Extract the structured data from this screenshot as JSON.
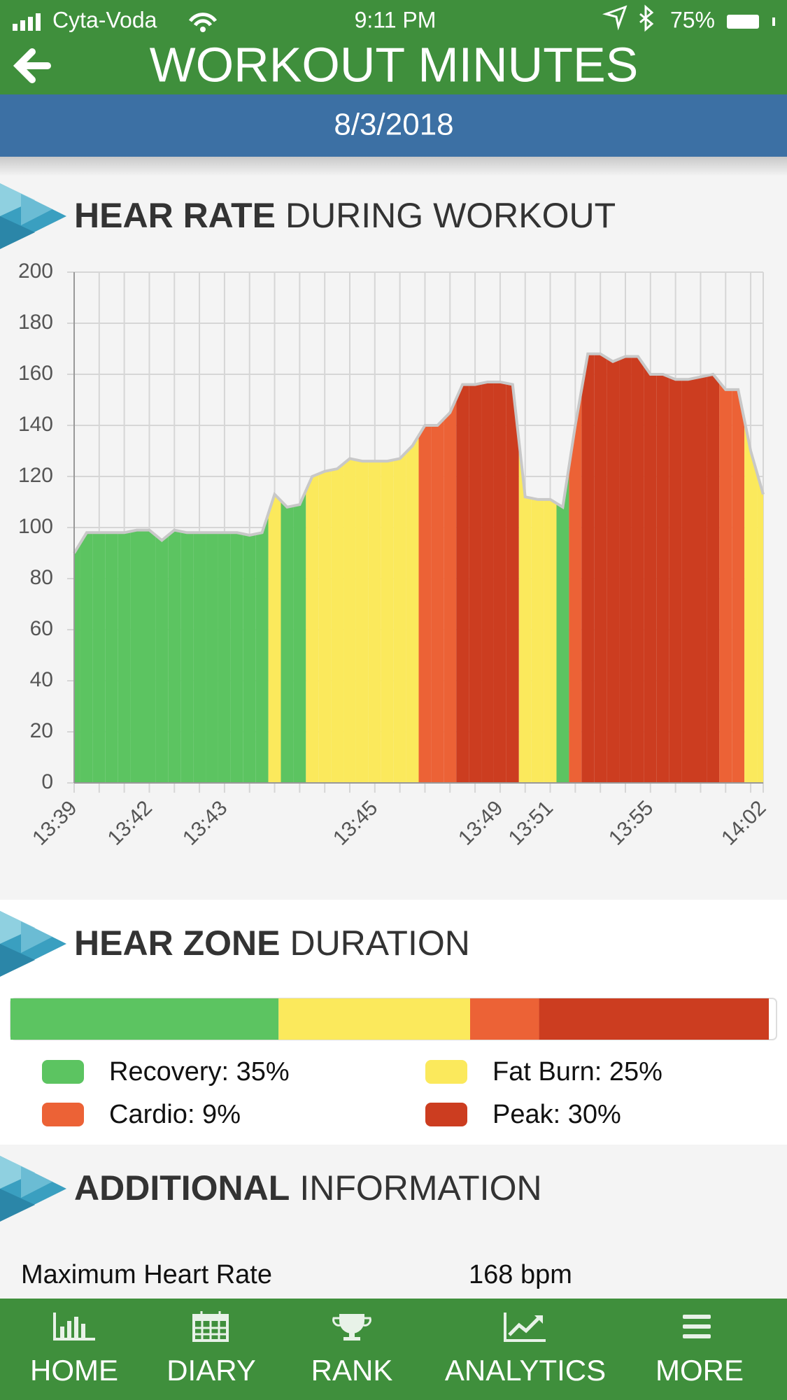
{
  "status_bar": {
    "carrier": "Cyta-Voda",
    "time": "9:11 PM",
    "battery": "75%"
  },
  "header": {
    "title": "WORKOUT MINUTES",
    "date": "8/3/2018"
  },
  "chart_data": [
    {
      "type": "area",
      "title_bold": "HEAR RATE",
      "title_rest": "DURING WORKOUT",
      "categories": [
        "13:39",
        null,
        null,
        null,
        null,
        null,
        "13:42",
        null,
        null,
        null,
        null,
        null,
        "13:43",
        null,
        null,
        null,
        null,
        null,
        null,
        null,
        null,
        null,
        null,
        null,
        "13:45",
        null,
        null,
        null,
        null,
        null,
        null,
        null,
        null,
        null,
        "13:49",
        null,
        null,
        null,
        "13:51",
        null,
        null,
        null,
        null,
        null,
        null,
        null,
        "13:55",
        null,
        null,
        null,
        null,
        null,
        null,
        null,
        null,
        "14:02"
      ],
      "values": [
        90,
        98,
        98,
        98,
        98,
        99,
        99,
        95,
        99,
        98,
        98,
        98,
        98,
        98,
        97,
        98,
        113,
        108,
        109,
        120,
        122,
        123,
        127,
        126,
        126,
        126,
        127,
        132,
        140,
        140,
        145,
        156,
        156,
        157,
        157,
        156,
        112,
        111,
        111,
        108,
        140,
        168,
        168,
        165,
        167,
        167,
        160,
        160,
        158,
        158,
        159,
        160,
        154,
        154,
        130,
        113
      ],
      "zones": [
        0,
        110,
        138,
        155
      ],
      "line_color": "#c8c8c8",
      "ylim": [
        0,
        200
      ],
      "yticks": [
        0,
        20,
        40,
        60,
        80,
        100,
        120,
        140,
        160,
        180,
        200
      ],
      "grid": true
    },
    {
      "type": "stacked_bar",
      "title_bold": "HEAR ZONE",
      "title_rest": "DURATION",
      "values": [
        35,
        25,
        9,
        30
      ],
      "legend": [
        "Recovery: 35%",
        "Fat Burn: 25%",
        "Cardio: 9%",
        "Peak: 30%"
      ],
      "colors": [
        "#5cc461",
        "#fbe95c",
        "#ec6236",
        "#cc3d20"
      ],
      "xlim": [
        0,
        100
      ]
    }
  ],
  "additional": {
    "title_bold": "ADDITIONAL",
    "title_rest": "INFORMATION",
    "rows": [
      [
        "Maximum Heart Rate",
        "168 bpm"
      ]
    ]
  },
  "nav": [
    "HOME",
    "DIARY",
    "RANK",
    "ANALYTICS",
    "MORE"
  ]
}
